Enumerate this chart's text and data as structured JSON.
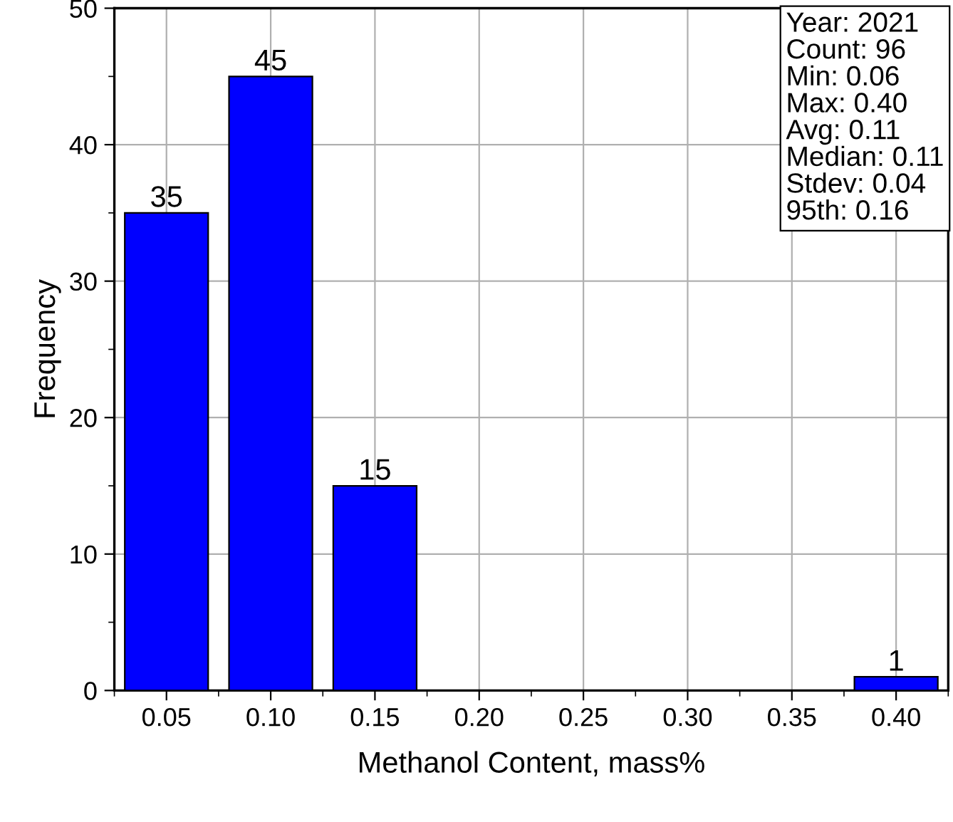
{
  "chart_data": {
    "type": "histogram",
    "xlabel": "Methanol Content, mass%",
    "ylabel": "Frequency",
    "bins": [
      0.025,
      0.075,
      0.125,
      0.175,
      0.225,
      0.275,
      0.325,
      0.375,
      0.425
    ],
    "values": [
      35,
      45,
      15,
      0,
      0,
      0,
      0,
      1
    ],
    "value_labels": [
      "35",
      "45",
      "15",
      null,
      null,
      null,
      null,
      "1"
    ],
    "color": "#0000ff",
    "xlim": [
      0.025,
      0.425
    ],
    "xticks": [
      {
        "value": 0.05,
        "label": "0.05"
      },
      {
        "value": 0.1,
        "label": "0.10"
      },
      {
        "value": 0.15,
        "label": "0.15"
      },
      {
        "value": 0.2,
        "label": "0.20"
      },
      {
        "value": 0.25,
        "label": "0.25"
      },
      {
        "value": 0.3,
        "label": "0.30"
      },
      {
        "value": 0.35,
        "label": "0.35"
      },
      {
        "value": 0.4,
        "label": "0.40"
      }
    ],
    "ylim": [
      0,
      50
    ],
    "yticks": [
      0,
      10,
      20,
      30,
      40,
      50
    ],
    "grid": true,
    "annotations": [
      "Year: 2021\nCount: 96\nMin: 0.06\nMax: 0.40\nAvg: 0.11\nMedian: 0.11\nStdev: 0.04\n95th: 0.16"
    ]
  }
}
